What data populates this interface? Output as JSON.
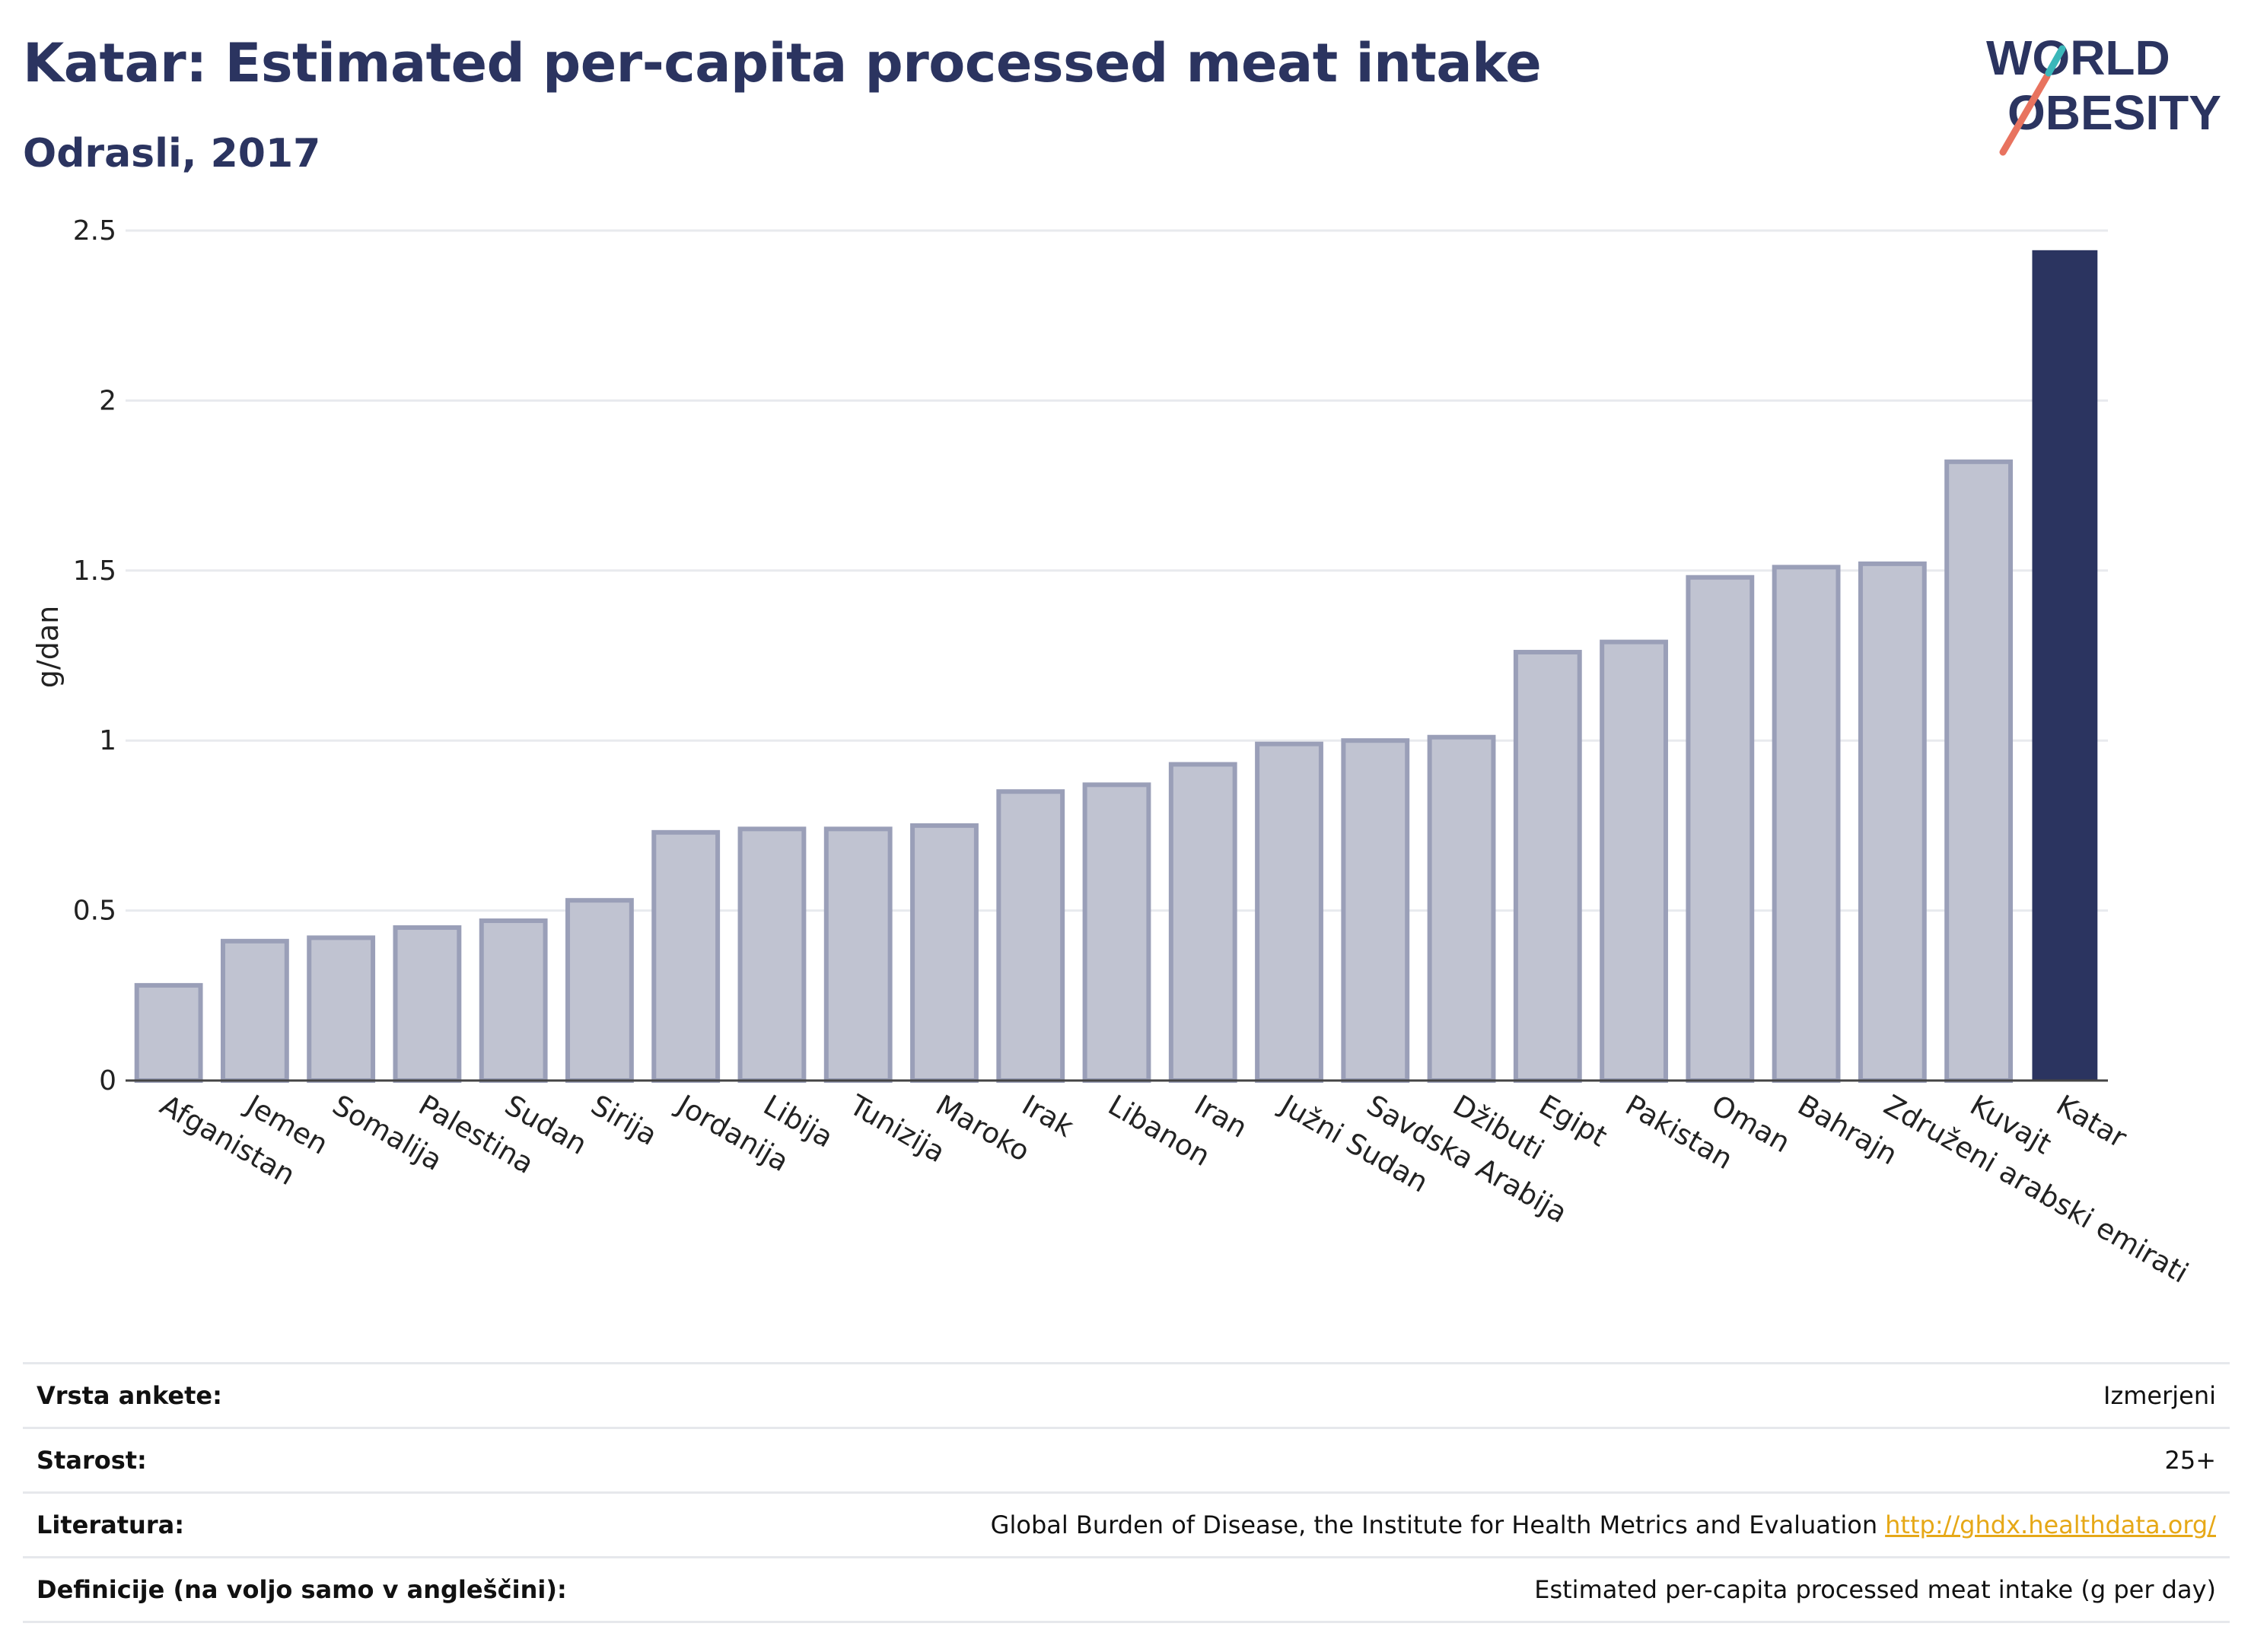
{
  "title": "Katar: Estimated per-capita processed meat intake",
  "subtitle": "Odrasli, 2017",
  "logo": {
    "text_line1": "WORLD",
    "text_line2": "OBESITY"
  },
  "colors": {
    "highlight": "#2b3460",
    "bar": "#c0c3d1",
    "bar_border": "#9a9fb8",
    "title": "#2b3460",
    "link": "#e6a817"
  },
  "chart_data": {
    "type": "bar",
    "ylabel": "g/dan",
    "ylim": [
      0,
      2.5
    ],
    "yticks": [
      "0",
      "0.5",
      "1",
      "1.5",
      "2",
      "2.5"
    ],
    "highlight": "Katar",
    "categories": [
      "Afganistan",
      "Jemen",
      "Somalija",
      "Palestina",
      "Sudan",
      "Sirija",
      "Jordanija",
      "Libija",
      "Tunizija",
      "Maroko",
      "Irak",
      "Libanon",
      "Iran",
      "Južni Sudan",
      "Savdska Arabija",
      "Džibuti",
      "Egipt",
      "Pakistan",
      "Oman",
      "Bahrajn",
      "Združeni arabski emirati",
      "Kuvajt",
      "Katar"
    ],
    "values": [
      0.28,
      0.41,
      0.42,
      0.45,
      0.47,
      0.53,
      0.73,
      0.74,
      0.74,
      0.75,
      0.85,
      0.87,
      0.93,
      0.99,
      1.0,
      1.01,
      1.26,
      1.29,
      1.48,
      1.51,
      1.52,
      1.82,
      2.44
    ]
  },
  "meta": [
    {
      "label": "Vrsta ankete:",
      "value": "Izmerjeni"
    },
    {
      "label": "Starost:",
      "value": "25+"
    },
    {
      "label": "Literatura:",
      "value": "Global Burden of Disease, the Institute for Health Metrics and Evaluation",
      "link": "http://ghdx.healthdata.org/"
    },
    {
      "label": "Definicije (na voljo samo v angleščini):",
      "value": "Estimated per-capita processed meat intake (g per day)"
    }
  ]
}
